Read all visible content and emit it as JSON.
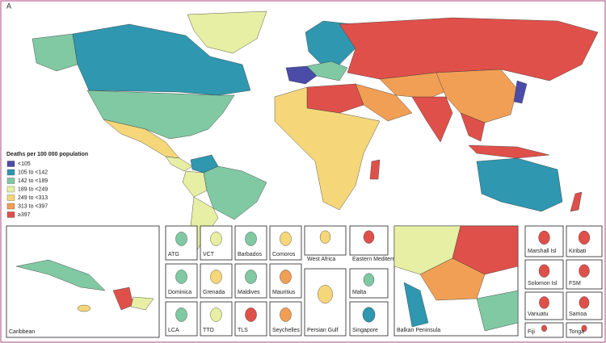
{
  "panel_label": "A",
  "legend": {
    "title": "Deaths per 100 000 population",
    "items": [
      {
        "label": "<105",
        "color": "#4b4ba8"
      },
      {
        "label": "105 to <142",
        "color": "#2f97b0"
      },
      {
        "label": "142 to <189",
        "color": "#80c9a3"
      },
      {
        "label": "189 to <249",
        "color": "#e6efa3"
      },
      {
        "label": "249 to <313",
        "color": "#f5d77a"
      },
      {
        "label": "313 to <397",
        "color": "#f19f55"
      },
      {
        "label": "≥397",
        "color": "#e0504a"
      }
    ]
  },
  "insets": [
    "Caribbean",
    "ATG",
    "VCT",
    "Barbados",
    "Comoros",
    "Dominica",
    "Grenada",
    "Maldives",
    "Mauritius",
    "LCA",
    "TTO",
    "TLS",
    "Seychelles",
    "West Africa",
    "Eastern Mediterranean",
    "Persian Gulf",
    "Malta",
    "Singapore",
    "Balkan Peninsula",
    "Marshall Isl",
    "Kiribati",
    "Solomon Isl",
    "FSM",
    "Vanuatu",
    "Samoa",
    "Fiji",
    "Tonga"
  ]
}
